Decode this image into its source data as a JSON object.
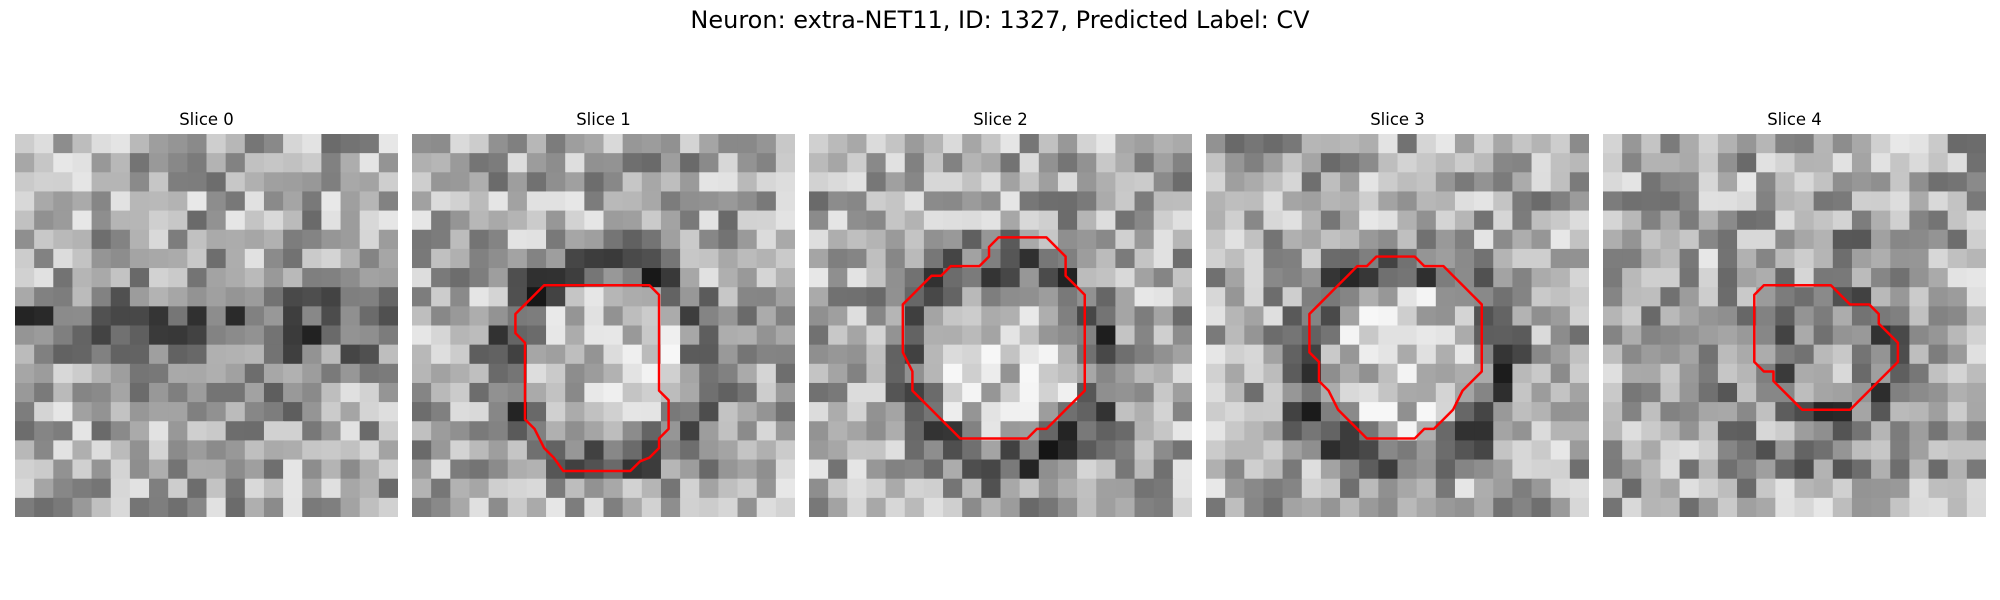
{
  "figure": {
    "title": "Neuron: extra-NET11, ID: 1327, Predicted Label: CV"
  },
  "slices": [
    {
      "title": "Slice 0",
      "has_contour": false,
      "dark_feature": "band",
      "contour": []
    },
    {
      "title": "Slice 1",
      "has_contour": true,
      "dark_feature": "ring",
      "contour": [
        [
          7.4,
          7.9
        ],
        [
          12.4,
          7.9
        ],
        [
          12.9,
          8.4
        ],
        [
          12.9,
          10.9
        ],
        [
          12.9,
          13.4
        ],
        [
          13.4,
          13.9
        ],
        [
          13.4,
          15.4
        ],
        [
          12.9,
          15.9
        ],
        [
          12.9,
          16.4
        ],
        [
          12.4,
          16.9
        ],
        [
          11.9,
          17.1
        ],
        [
          11.4,
          17.6
        ],
        [
          9.4,
          17.6
        ],
        [
          7.9,
          17.6
        ],
        [
          7.4,
          16.9
        ],
        [
          6.9,
          16.4
        ],
        [
          6.4,
          15.4
        ],
        [
          5.9,
          14.9
        ],
        [
          5.9,
          13.4
        ],
        [
          5.9,
          11.9
        ],
        [
          5.9,
          10.9
        ],
        [
          5.4,
          10.4
        ],
        [
          5.4,
          9.4
        ],
        [
          5.9,
          8.9
        ],
        [
          6.4,
          8.4
        ],
        [
          6.9,
          7.9
        ]
      ]
    },
    {
      "title": "Slice 2",
      "has_contour": true,
      "dark_feature": "ring",
      "contour": [
        [
          9.9,
          5.4
        ],
        [
          12.4,
          5.4
        ],
        [
          12.9,
          5.9
        ],
        [
          13.4,
          6.4
        ],
        [
          13.4,
          7.4
        ],
        [
          13.9,
          7.9
        ],
        [
          14.4,
          8.4
        ],
        [
          14.4,
          9.9
        ],
        [
          14.4,
          11.4
        ],
        [
          14.4,
          13.4
        ],
        [
          13.9,
          13.9
        ],
        [
          13.4,
          14.4
        ],
        [
          12.9,
          14.9
        ],
        [
          12.4,
          15.4
        ],
        [
          11.9,
          15.4
        ],
        [
          11.4,
          15.9
        ],
        [
          10.4,
          15.9
        ],
        [
          9.4,
          15.9
        ],
        [
          8.4,
          15.9
        ],
        [
          7.9,
          15.9
        ],
        [
          7.4,
          15.4
        ],
        [
          6.9,
          14.9
        ],
        [
          6.4,
          14.4
        ],
        [
          5.9,
          13.9
        ],
        [
          5.4,
          13.4
        ],
        [
          5.4,
          12.4
        ],
        [
          4.9,
          11.4
        ],
        [
          4.9,
          9.9
        ],
        [
          4.9,
          8.9
        ],
        [
          5.4,
          8.4
        ],
        [
          5.9,
          7.9
        ],
        [
          6.4,
          7.4
        ],
        [
          6.9,
          7.4
        ],
        [
          7.4,
          6.9
        ],
        [
          7.9,
          6.9
        ],
        [
          8.9,
          6.9
        ],
        [
          9.4,
          6.4
        ],
        [
          9.4,
          5.9
        ]
      ]
    },
    {
      "title": "Slice 3",
      "has_contour": true,
      "dark_feature": "ring",
      "contour": [
        [
          8.9,
          6.4
        ],
        [
          10.9,
          6.4
        ],
        [
          11.4,
          6.9
        ],
        [
          12.4,
          6.9
        ],
        [
          12.9,
          7.4
        ],
        [
          13.4,
          7.9
        ],
        [
          13.9,
          8.4
        ],
        [
          14.4,
          8.9
        ],
        [
          14.4,
          10.9
        ],
        [
          14.4,
          12.4
        ],
        [
          13.9,
          12.9
        ],
        [
          13.4,
          13.4
        ],
        [
          12.9,
          14.4
        ],
        [
          12.4,
          14.9
        ],
        [
          11.9,
          15.4
        ],
        [
          11.4,
          15.4
        ],
        [
          10.9,
          15.9
        ],
        [
          9.4,
          15.9
        ],
        [
          8.4,
          15.9
        ],
        [
          7.9,
          15.4
        ],
        [
          7.4,
          14.9
        ],
        [
          6.9,
          14.4
        ],
        [
          6.4,
          13.4
        ],
        [
          5.9,
          12.9
        ],
        [
          5.9,
          11.9
        ],
        [
          5.4,
          11.4
        ],
        [
          5.4,
          10.4
        ],
        [
          5.4,
          9.4
        ],
        [
          5.9,
          8.9
        ],
        [
          6.4,
          8.4
        ],
        [
          6.9,
          7.9
        ],
        [
          7.4,
          7.4
        ],
        [
          7.9,
          6.9
        ],
        [
          8.4,
          6.9
        ]
      ]
    },
    {
      "title": "Slice 4",
      "has_contour": true,
      "dark_feature": "small-ring",
      "contour": [
        [
          8.4,
          7.9
        ],
        [
          11.9,
          7.9
        ],
        [
          12.4,
          8.4
        ],
        [
          12.9,
          8.9
        ],
        [
          13.9,
          8.9
        ],
        [
          14.4,
          9.4
        ],
        [
          14.4,
          9.9
        ],
        [
          14.9,
          10.4
        ],
        [
          15.4,
          10.9
        ],
        [
          15.4,
          11.9
        ],
        [
          14.9,
          12.4
        ],
        [
          14.4,
          12.9
        ],
        [
          13.9,
          13.4
        ],
        [
          13.4,
          13.9
        ],
        [
          12.9,
          14.4
        ],
        [
          12.4,
          14.4
        ],
        [
          11.4,
          14.4
        ],
        [
          10.4,
          14.4
        ],
        [
          9.9,
          13.9
        ],
        [
          9.4,
          13.4
        ],
        [
          8.9,
          12.9
        ],
        [
          8.9,
          12.4
        ],
        [
          8.4,
          12.4
        ],
        [
          7.9,
          11.9
        ],
        [
          7.9,
          10.9
        ],
        [
          7.9,
          9.9
        ],
        [
          7.9,
          8.9
        ],
        [
          7.9,
          8.4
        ]
      ]
    }
  ],
  "colors": {
    "contour": "#ff0000",
    "background": "#ffffff"
  }
}
